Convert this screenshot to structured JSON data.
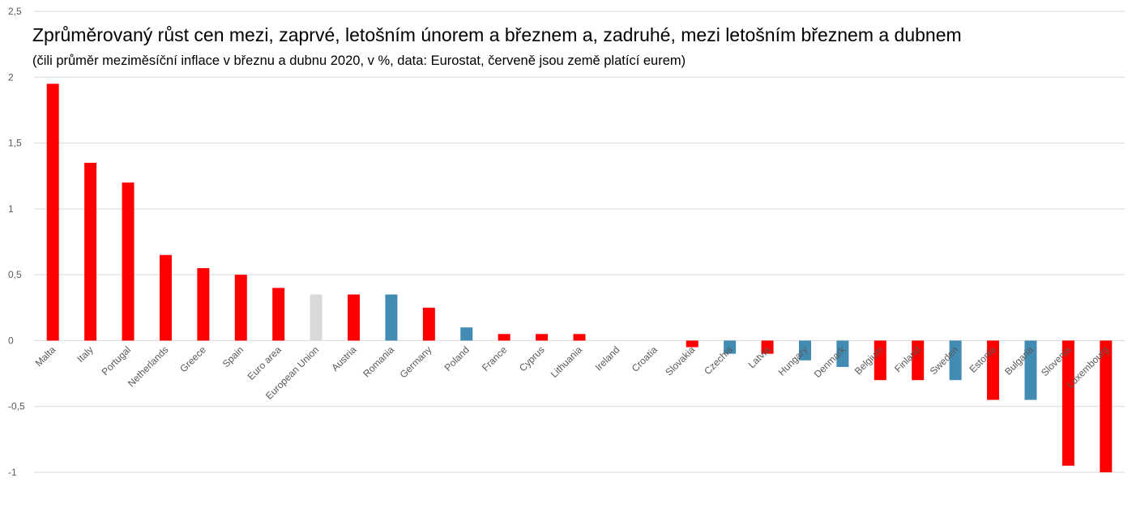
{
  "chart_data": {
    "type": "bar",
    "title": "Zprůměrovaný růst cen mezi, zaprvé, letošním únorem a březnem a, zadruhé, mezi letošním březnem a dubnem",
    "subtitle": "(čili průměr meziměsíční inflace v březnu a dubnu 2020, v %, data: Eurostat, červeně jsou země platící eurem)",
    "xlabel": "",
    "ylabel": "",
    "ylim": [
      -1,
      2.5
    ],
    "yticks": [
      2.5,
      2,
      1.5,
      1,
      0.5,
      0,
      -0.5,
      -1
    ],
    "ytick_labels": [
      "2,5",
      "2",
      "1,5",
      "1",
      "0,5",
      "0",
      "-0,5",
      "-1"
    ],
    "grid": true,
    "legend": "none",
    "categories": [
      "Malta",
      "Italy",
      "Portugal",
      "Netherlands",
      "Greece",
      "Spain",
      "Euro area",
      "European Union",
      "Austria",
      "Romania",
      "Germany",
      "Poland",
      "France",
      "Cyprus",
      "Lithuania",
      "Ireland",
      "Croatia",
      "Slovakia",
      "Czechia",
      "Latvia",
      "Hungary",
      "Denmark",
      "Belgium",
      "Finland",
      "Sweden",
      "Estonia",
      "Bulgaria",
      "Slovenia",
      "Luxembourg"
    ],
    "values": [
      1.95,
      1.35,
      1.2,
      0.65,
      0.55,
      0.5,
      0.4,
      0.35,
      0.35,
      0.35,
      0.25,
      0.1,
      0.05,
      0.05,
      0.05,
      0,
      0,
      -0.05,
      -0.1,
      -0.1,
      -0.15,
      -0.2,
      -0.3,
      -0.3,
      -0.3,
      -0.45,
      -0.45,
      -0.95,
      -1.0
    ],
    "bar_colors": [
      "#ff0000",
      "#ff0000",
      "#ff0000",
      "#ff0000",
      "#ff0000",
      "#ff0000",
      "#ff0000",
      "#d9d9d9",
      "#ff0000",
      "#428bb3",
      "#ff0000",
      "#428bb3",
      "#ff0000",
      "#ff0000",
      "#ff0000",
      "#ff0000",
      "#428bb3",
      "#ff0000",
      "#428bb3",
      "#ff0000",
      "#428bb3",
      "#428bb3",
      "#ff0000",
      "#ff0000",
      "#428bb3",
      "#ff0000",
      "#428bb3",
      "#ff0000",
      "#ff0000"
    ]
  }
}
